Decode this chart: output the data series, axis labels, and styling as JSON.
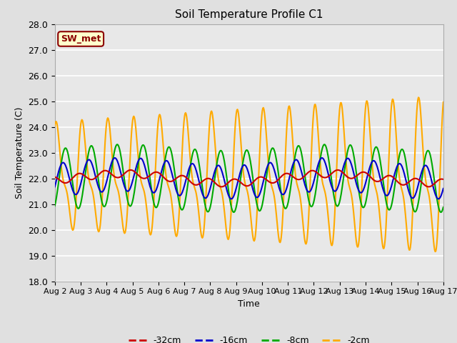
{
  "title": "Soil Temperature Profile C1",
  "xlabel": "Time",
  "ylabel": "Soil Temperature (C)",
  "ylim": [
    18.0,
    28.0
  ],
  "yticks": [
    18.0,
    19.0,
    20.0,
    21.0,
    22.0,
    23.0,
    24.0,
    25.0,
    26.0,
    27.0,
    28.0
  ],
  "xtick_labels": [
    "Aug 2",
    "Aug 3",
    "Aug 4",
    "Aug 5",
    "Aug 6",
    "Aug 7",
    "Aug 8",
    "Aug 9",
    "Aug 10",
    "Aug 11",
    "Aug 12",
    "Aug 13",
    "Aug 14",
    "Aug 15",
    "Aug 16",
    "Aug 17"
  ],
  "legend_labels": [
    "-32cm",
    "-16cm",
    "-8cm",
    "-2cm"
  ],
  "line_colors": [
    "#cc0000",
    "#0000cc",
    "#00aa00",
    "#ffaa00"
  ],
  "bg_color": "#e0e0e0",
  "plot_bg_color": "#e8e8e8",
  "annotation_text": "SW_met",
  "annotation_bg": "#ffffcc",
  "annotation_border": "#8b0000",
  "n_days": 15,
  "base_temp": 22.0,
  "red_amp": 0.18,
  "red_slow_amp": 0.25,
  "blue_amp": 0.6,
  "green_amp": 1.15,
  "orange_amp_base": 2.2,
  "orange_amp_grow": 1.5,
  "figsize": [
    6.4,
    4.8
  ],
  "dpi": 100
}
